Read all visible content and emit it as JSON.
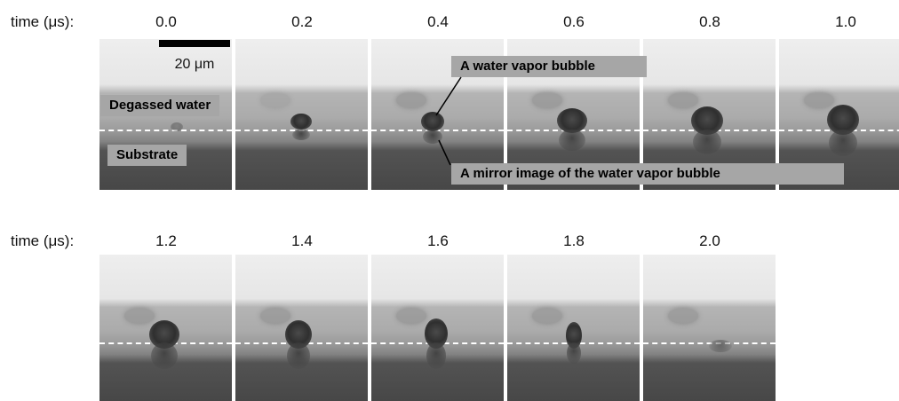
{
  "rows": [
    {
      "label": "time (μs):",
      "times": [
        "0.0",
        "0.2",
        "0.4",
        "0.6",
        "0.8",
        "1.0"
      ]
    },
    {
      "label": "time (μs):",
      "times": [
        "1.2",
        "1.4",
        "1.6",
        "1.8",
        "2.0"
      ]
    }
  ],
  "scale_bar": "20 μm",
  "labels": {
    "degassed_water": "Degassed water",
    "substrate": "Substrate",
    "vapor_bubble": "A water vapor bubble",
    "mirror_image": "A mirror image of the water vapor bubble"
  },
  "colors": {
    "label_box": "#a6a6a6",
    "dashed_line": "#ffffff",
    "bubble": "#2f2f2f"
  }
}
